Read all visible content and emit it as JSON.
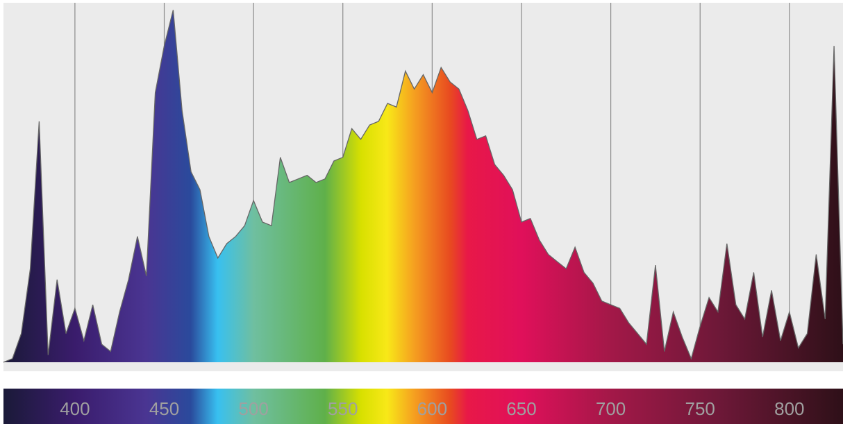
{
  "chart_data": {
    "type": "area",
    "x": [
      360,
      365,
      370,
      375,
      380,
      385,
      390,
      395,
      400,
      405,
      410,
      415,
      420,
      425,
      430,
      435,
      440,
      445,
      450,
      455,
      460,
      465,
      470,
      475,
      480,
      485,
      490,
      495,
      500,
      505,
      510,
      515,
      520,
      525,
      530,
      535,
      540,
      545,
      550,
      555,
      560,
      565,
      570,
      575,
      580,
      585,
      590,
      595,
      600,
      605,
      610,
      615,
      620,
      625,
      630,
      635,
      640,
      645,
      650,
      655,
      660,
      665,
      670,
      675,
      680,
      685,
      690,
      695,
      700,
      705,
      710,
      715,
      720,
      725,
      730,
      735,
      740,
      745,
      750,
      755,
      760,
      765,
      770,
      775,
      780,
      785,
      790,
      795,
      800,
      805,
      810,
      815,
      820,
      825,
      830
    ],
    "values": [
      0,
      1,
      8,
      26,
      67,
      2,
      23,
      8,
      15,
      6,
      16,
      5,
      3,
      14,
      23,
      35,
      24,
      75,
      88,
      98,
      70,
      53,
      48,
      35,
      29,
      33,
      35,
      38,
      45,
      39,
      38,
      57,
      50,
      51,
      52,
      50,
      51,
      56,
      57,
      65,
      62,
      66,
      67,
      72,
      71,
      81,
      76,
      80,
      75,
      82,
      78,
      76,
      70,
      62,
      63,
      55,
      52,
      48,
      39,
      40,
      34,
      30,
      28,
      26,
      32,
      25,
      22,
      17,
      16,
      15,
      11,
      8,
      5,
      27,
      3,
      14,
      7,
      1,
      10,
      18,
      14,
      33,
      16,
      12,
      25,
      7,
      20,
      6,
      14,
      4,
      8,
      30,
      12,
      88,
      5
    ],
    "xlim": [
      360,
      830
    ],
    "ylim": [
      0,
      100
    ],
    "xticks": [
      400,
      450,
      500,
      550,
      600,
      650,
      700,
      750,
      800
    ],
    "grid": true,
    "line_color": "#666666"
  }
}
